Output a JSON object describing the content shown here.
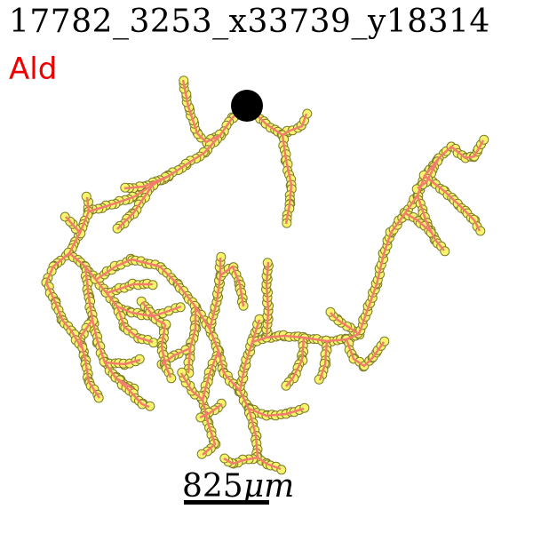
{
  "title": "17782_3253_x33739_y18314",
  "tag": "Ald",
  "scale": {
    "label": "825",
    "unit": "μm"
  },
  "colors": {
    "tag": "#ee0000",
    "edge": "#f47c6c",
    "node_fill": "#f8f46c",
    "node_stroke": "#7c7c2c",
    "soma": "#000000"
  }
}
